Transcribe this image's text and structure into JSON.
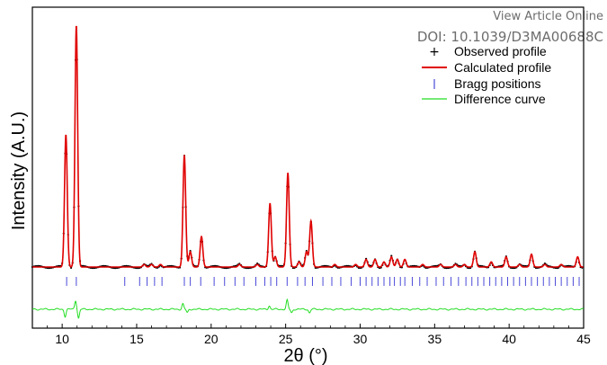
{
  "header": {
    "view_article_link": "View Article Online",
    "doi": "DOI: 10.1039/D3MA00688C"
  },
  "colors": {
    "observed": "#000000",
    "calculated": "#e00000",
    "bragg": "#4a4ad8",
    "difference": "#22dd22"
  },
  "chart_data": {
    "type": "line",
    "title": "",
    "xlabel": "2θ (°)",
    "ylabel": "Intensity (A.U.)",
    "xlim": [
      8,
      45
    ],
    "xticks": [
      10,
      15,
      20,
      25,
      30,
      35,
      40,
      45
    ],
    "y_ticks_shown": false,
    "legend": {
      "placement": "top-right",
      "entries": [
        "Observed profile",
        "Calculated profile",
        "Bragg positions",
        "Difference curve"
      ]
    },
    "background_level": 0.05,
    "peaks": [
      {
        "x": 10.25,
        "height": 0.52
      },
      {
        "x": 10.95,
        "height": 0.95
      },
      {
        "x": 15.5,
        "height": 0.01
      },
      {
        "x": 16.0,
        "height": 0.01
      },
      {
        "x": 16.6,
        "height": 0.01
      },
      {
        "x": 18.2,
        "height": 0.44
      },
      {
        "x": 18.6,
        "height": 0.06
      },
      {
        "x": 19.35,
        "height": 0.12
      },
      {
        "x": 21.9,
        "height": 0.01
      },
      {
        "x": 23.1,
        "height": 0.01
      },
      {
        "x": 23.95,
        "height": 0.25
      },
      {
        "x": 24.3,
        "height": 0.04
      },
      {
        "x": 25.15,
        "height": 0.37
      },
      {
        "x": 25.9,
        "height": 0.02
      },
      {
        "x": 26.4,
        "height": 0.06
      },
      {
        "x": 26.7,
        "height": 0.18
      },
      {
        "x": 28.3,
        "height": 0.01
      },
      {
        "x": 29.7,
        "height": 0.01
      },
      {
        "x": 30.4,
        "height": 0.03
      },
      {
        "x": 31.0,
        "height": 0.03
      },
      {
        "x": 31.6,
        "height": 0.02
      },
      {
        "x": 32.1,
        "height": 0.04
      },
      {
        "x": 32.5,
        "height": 0.03
      },
      {
        "x": 33.0,
        "height": 0.03
      },
      {
        "x": 34.2,
        "height": 0.01
      },
      {
        "x": 35.4,
        "height": 0.01
      },
      {
        "x": 36.4,
        "height": 0.01
      },
      {
        "x": 37.0,
        "height": 0.01
      },
      {
        "x": 37.7,
        "height": 0.06
      },
      {
        "x": 38.8,
        "height": 0.02
      },
      {
        "x": 39.8,
        "height": 0.04
      },
      {
        "x": 40.7,
        "height": 0.01
      },
      {
        "x": 41.5,
        "height": 0.05
      },
      {
        "x": 42.4,
        "height": 0.01
      },
      {
        "x": 43.5,
        "height": 0.01
      },
      {
        "x": 44.6,
        "height": 0.04
      }
    ],
    "bragg_positions": [
      10.3,
      10.95,
      14.2,
      15.2,
      15.7,
      16.2,
      16.7,
      18.2,
      18.6,
      19.3,
      20.2,
      20.9,
      21.6,
      22.2,
      23.0,
      23.6,
      24.0,
      24.4,
      25.1,
      25.8,
      26.3,
      26.8,
      27.5,
      28.1,
      28.7,
      29.4,
      30.0,
      30.4,
      30.8,
      31.2,
      31.6,
      32.0,
      32.3,
      32.7,
      33.0,
      33.5,
      34.0,
      34.5,
      35.1,
      35.6,
      36.1,
      36.6,
      37.1,
      37.5,
      37.9,
      38.3,
      38.7,
      39.1,
      39.5,
      39.9,
      40.3,
      40.7,
      41.1,
      41.5,
      41.9,
      42.3,
      42.7,
      43.1,
      43.5,
      43.9,
      44.3,
      44.7
    ],
    "difference_features": [
      {
        "x": 10.2,
        "amp": -0.04
      },
      {
        "x": 10.9,
        "amp": 0.05
      },
      {
        "x": 11.1,
        "amp": -0.05
      },
      {
        "x": 18.1,
        "amp": 0.03
      },
      {
        "x": 18.4,
        "amp": -0.02
      },
      {
        "x": 23.9,
        "amp": 0.02
      },
      {
        "x": 25.1,
        "amp": 0.05
      },
      {
        "x": 25.4,
        "amp": -0.02
      },
      {
        "x": 26.6,
        "amp": -0.02
      }
    ]
  }
}
